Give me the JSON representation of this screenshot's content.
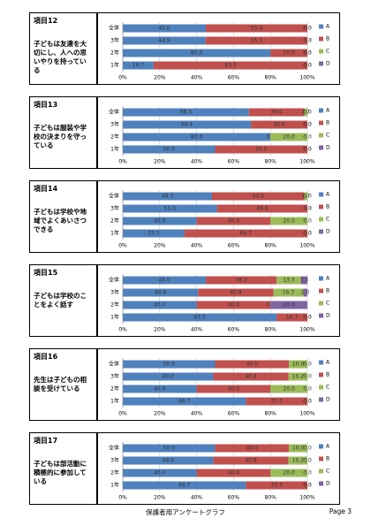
{
  "chart_data": [
    {
      "type": "stacked-bar-horizontal",
      "title": "項目12",
      "subtitle": "子どもは友達を大切にし、人への思いやりを持っている",
      "categories": [
        "全体",
        "3年",
        "2年",
        "1年"
      ],
      "xlim": [
        0,
        100
      ],
      "grid": true,
      "legend": "right",
      "xticks": [
        {
          "value": 0,
          "label": "0%"
        },
        {
          "value": 20,
          "label": "20%"
        },
        {
          "value": 40,
          "label": "40%"
        },
        {
          "value": 60,
          "label": "60%"
        },
        {
          "value": 80,
          "label": "80%"
        },
        {
          "value": 100,
          "label": "100%"
        }
      ],
      "series": [
        {
          "name": "A",
          "color": "#4f81bd",
          "values": [
            45.0,
            44.9,
            80.0,
            16.7
          ],
          "value_labels": [
            "45.0",
            "44.9",
            "80.0",
            "16.7"
          ]
        },
        {
          "name": "B",
          "color": "#c0504d",
          "values": [
            55.0,
            55.1,
            20.0,
            83.3
          ],
          "value_labels": [
            "55.0",
            "55.1",
            "20.0",
            "83.3"
          ]
        },
        {
          "name": "C",
          "color": "#9bbb59",
          "values": [
            0,
            0,
            0,
            0
          ],
          "value_labels": [
            "0.0",
            "0.0",
            "0.0",
            "0.0"
          ]
        },
        {
          "name": "D",
          "color": "#8064a2",
          "values": [
            0,
            0,
            0,
            0
          ],
          "value_labels": [
            "0.0",
            "0.0",
            "0.0",
            "0.0"
          ]
        }
      ]
    },
    {
      "type": "stacked-bar-horizontal",
      "title": "項目13",
      "subtitle": "子どもは服装や学校の決まりを守っている",
      "categories": [
        "全体",
        "3年",
        "2年",
        "1年"
      ],
      "xlim": [
        0,
        100
      ],
      "grid": true,
      "legend": "right",
      "xticks": [
        {
          "value": 0,
          "label": "0%"
        },
        {
          "value": 20,
          "label": "20%"
        },
        {
          "value": 40,
          "label": "40%"
        },
        {
          "value": 60,
          "label": "60%"
        },
        {
          "value": 80,
          "label": "80%"
        },
        {
          "value": 100,
          "label": "100%"
        }
      ],
      "series": [
        {
          "name": "A",
          "color": "#4f81bd",
          "values": [
            68.3,
            69.4,
            80.0,
            50.0
          ],
          "value_labels": [
            "68.3",
            "69.4",
            "80.0",
            "50.0"
          ]
        },
        {
          "name": "B",
          "color": "#c0504d",
          "values": [
            30.0,
            30.6,
            0,
            50.0
          ],
          "value_labels": [
            "30.0",
            "30.6",
            "0.0",
            "50.0"
          ]
        },
        {
          "name": "C",
          "color": "#9bbb59",
          "values": [
            1.7,
            0,
            20.0,
            0
          ],
          "value_labels": [
            "1.7",
            "0.0",
            "20.0",
            "0.0"
          ]
        },
        {
          "name": "D",
          "color": "#8064a2",
          "values": [
            0,
            0,
            0,
            0
          ],
          "value_labels": [
            "0.0",
            "0.0",
            "0.0",
            "0.0"
          ]
        }
      ]
    },
    {
      "type": "stacked-bar-horizontal",
      "title": "項目14",
      "subtitle": "子どもは学校や地域でよくあいさつできる",
      "categories": [
        "全体",
        "3年",
        "2年",
        "1年"
      ],
      "xlim": [
        0,
        100
      ],
      "grid": true,
      "legend": "right",
      "xticks": [
        {
          "value": 0,
          "label": "0%"
        },
        {
          "value": 20,
          "label": "20%"
        },
        {
          "value": 40,
          "label": "40%"
        },
        {
          "value": 60,
          "label": "60%"
        },
        {
          "value": 80,
          "label": "80%"
        },
        {
          "value": 100,
          "label": "100%"
        }
      ],
      "series": [
        {
          "name": "A",
          "color": "#4f81bd",
          "values": [
            48.3,
            51.0,
            40.0,
            33.3
          ],
          "value_labels": [
            "48.3",
            "51.0",
            "40.0",
            "33.3"
          ]
        },
        {
          "name": "B",
          "color": "#c0504d",
          "values": [
            50.0,
            49.0,
            40.0,
            66.7
          ],
          "value_labels": [
            "50.0",
            "49.0",
            "40.0",
            "66.7"
          ]
        },
        {
          "name": "C",
          "color": "#9bbb59",
          "values": [
            1.7,
            0,
            20.0,
            0
          ],
          "value_labels": [
            "1.7",
            "0.0",
            "20.0",
            "0.0"
          ]
        },
        {
          "name": "D",
          "color": "#8064a2",
          "values": [
            0,
            0,
            0,
            0
          ],
          "value_labels": [
            "0.0",
            "0.0",
            "0.0",
            "0.0"
          ]
        }
      ]
    },
    {
      "type": "stacked-bar-horizontal",
      "title": "項目15",
      "subtitle": "子どもは学校のことをよく話す",
      "categories": [
        "全体",
        "3年",
        "2年",
        "1年"
      ],
      "xlim": [
        0,
        100
      ],
      "grid": true,
      "legend": "right",
      "xticks": [
        {
          "value": 0,
          "label": "0%"
        },
        {
          "value": 20,
          "label": "20%"
        },
        {
          "value": 40,
          "label": "40%"
        },
        {
          "value": 60,
          "label": "60%"
        },
        {
          "value": 80,
          "label": "80%"
        },
        {
          "value": 100,
          "label": "100%"
        }
      ],
      "series": [
        {
          "name": "A",
          "color": "#4f81bd",
          "values": [
            45.0,
            40.8,
            40.0,
            83.3
          ],
          "value_labels": [
            "45.0",
            "40.8",
            "40.0",
            "83.3"
          ]
        },
        {
          "name": "B",
          "color": "#c0504d",
          "values": [
            38.3,
            40.8,
            40.0,
            16.7
          ],
          "value_labels": [
            "38.3",
            "40.8",
            "40.0",
            "16.7"
          ]
        },
        {
          "name": "C",
          "color": "#9bbb59",
          "values": [
            13.3,
            16.3,
            0,
            0
          ],
          "value_labels": [
            "13.3",
            "16.3",
            "0.0",
            "0.0"
          ]
        },
        {
          "name": "D",
          "color": "#8064a2",
          "values": [
            3.3,
            2.0,
            20.0,
            0
          ],
          "value_labels": [
            "3.3",
            "2.0",
            "20.0",
            "0.0"
          ]
        }
      ]
    },
    {
      "type": "stacked-bar-horizontal",
      "title": "項目16",
      "subtitle": "先生は子どもの相談を受けている",
      "categories": [
        "全体",
        "3年",
        "2年",
        "1年"
      ],
      "xlim": [
        0,
        100
      ],
      "grid": true,
      "legend": "right",
      "xticks": [
        {
          "value": 0,
          "label": "0%"
        },
        {
          "value": 20,
          "label": "20%"
        },
        {
          "value": 40,
          "label": "40%"
        },
        {
          "value": 60,
          "label": "60%"
        },
        {
          "value": 80,
          "label": "80%"
        },
        {
          "value": 100,
          "label": "100%"
        }
      ],
      "series": [
        {
          "name": "A",
          "color": "#4f81bd",
          "values": [
            50.0,
            49.0,
            40.0,
            66.7
          ],
          "value_labels": [
            "50.0",
            "49.0",
            "40.0",
            "66.7"
          ]
        },
        {
          "name": "B",
          "color": "#c0504d",
          "values": [
            40.0,
            40.8,
            40.0,
            33.3
          ],
          "value_labels": [
            "40.0",
            "40.8",
            "40.0",
            "33.3"
          ]
        },
        {
          "name": "C",
          "color": "#9bbb59",
          "values": [
            10.0,
            10.2,
            20.0,
            0
          ],
          "value_labels": [
            "10.0",
            "10.2",
            "20.0",
            "0.0"
          ]
        },
        {
          "name": "D",
          "color": "#8064a2",
          "values": [
            0,
            0,
            0,
            0
          ],
          "value_labels": [
            "0.0",
            "0.0",
            "0.0",
            "0.0"
          ]
        }
      ]
    },
    {
      "type": "stacked-bar-horizontal",
      "title": "項目17",
      "subtitle": "子どもは部活動に積極的に参加している",
      "categories": [
        "全体",
        "3年",
        "2年",
        "1年"
      ],
      "xlim": [
        0,
        100
      ],
      "grid": true,
      "legend": "right",
      "xticks": [
        {
          "value": 0,
          "label": "0%"
        },
        {
          "value": 20,
          "label": "20%"
        },
        {
          "value": 40,
          "label": "40%"
        },
        {
          "value": 60,
          "label": "60%"
        },
        {
          "value": 80,
          "label": "80%"
        },
        {
          "value": 100,
          "label": "100%"
        }
      ],
      "series": [
        {
          "name": "A",
          "color": "#4f81bd",
          "values": [
            50.0,
            49.0,
            40.0,
            66.7
          ],
          "value_labels": [
            "50.0",
            "49.0",
            "40.0",
            "66.7"
          ]
        },
        {
          "name": "B",
          "color": "#c0504d",
          "values": [
            40.0,
            40.8,
            40.0,
            33.3
          ],
          "value_labels": [
            "40.0",
            "40.8",
            "40.0",
            "33.3"
          ]
        },
        {
          "name": "C",
          "color": "#9bbb59",
          "values": [
            10.0,
            10.2,
            20.0,
            0
          ],
          "value_labels": [
            "10.0",
            "10.2",
            "20.0",
            "0.0"
          ]
        },
        {
          "name": "D",
          "color": "#8064a2",
          "values": [
            0,
            0,
            0,
            0
          ],
          "value_labels": [
            "0.0",
            "0.0",
            "0.0",
            "0.0"
          ]
        }
      ]
    }
  ],
  "footer": {
    "title": "保護者用アンケートグラフ",
    "page": "Page 3"
  }
}
